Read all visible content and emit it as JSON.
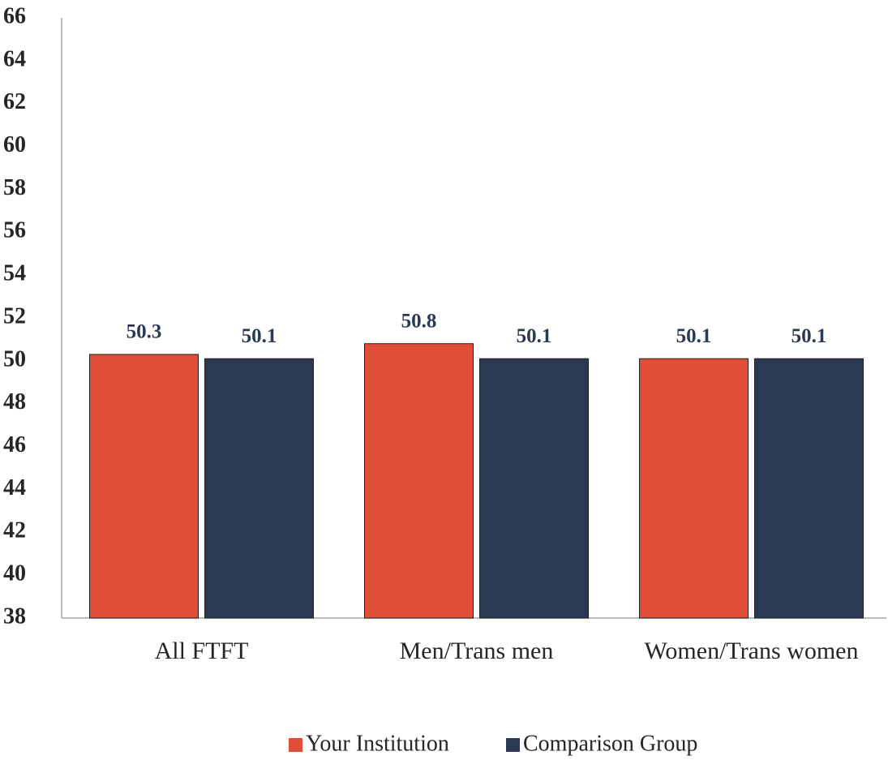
{
  "chart_data": {
    "type": "bar",
    "categories": [
      "All FTFT",
      "Men/Trans men",
      "Women/Trans women"
    ],
    "series": [
      {
        "name": "Your Institution",
        "color": "#e04e37",
        "values": [
          50.3,
          50.8,
          50.1
        ]
      },
      {
        "name": "Comparison Group",
        "color": "#2b3954",
        "values": [
          50.1,
          50.1,
          50.1
        ]
      }
    ],
    "ylim": [
      38,
      66
    ],
    "yticks": [
      38,
      40,
      42,
      44,
      46,
      48,
      50,
      52,
      54,
      56,
      58,
      60,
      62,
      64,
      66
    ],
    "grid": false,
    "legend": "bottom"
  }
}
